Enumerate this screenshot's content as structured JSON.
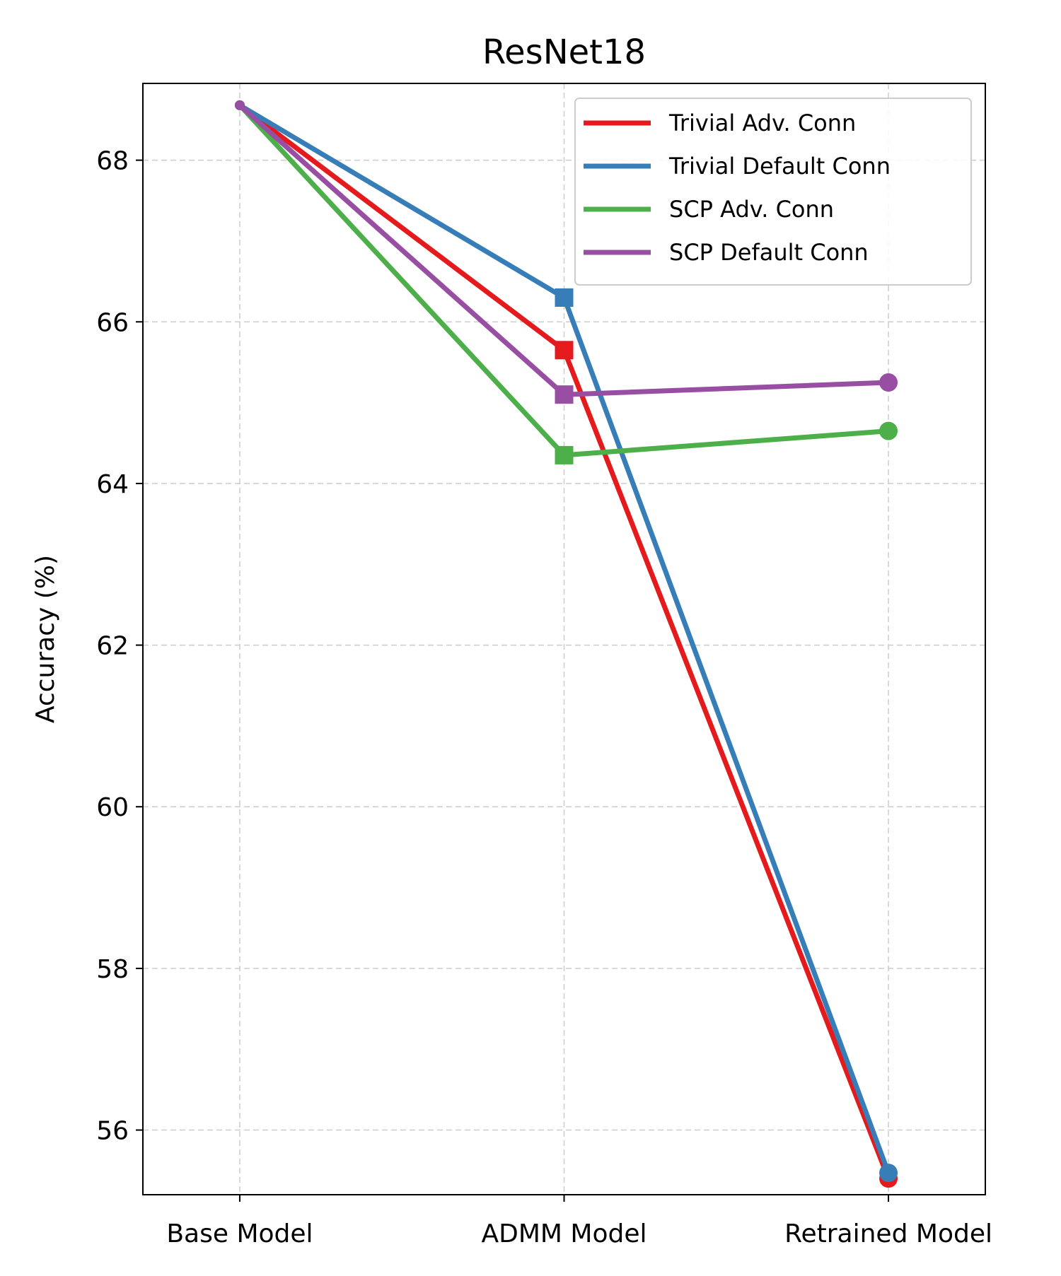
{
  "chart_data": {
    "type": "line",
    "title": "ResNet18",
    "xlabel": "",
    "ylabel": "Accuracy (%)",
    "categories": [
      "Base Model",
      "ADMM Model",
      "Retrained Model"
    ],
    "ylim": [
      55.2,
      68.95
    ],
    "yticks": [
      56,
      58,
      60,
      62,
      64,
      66,
      68
    ],
    "grid": true,
    "legend_position": "top-right",
    "series": [
      {
        "name": "Trivial Adv. Conn",
        "color": "#e41a1c",
        "values": [
          68.68,
          65.65,
          55.4
        ],
        "markers": [
          "small-circle",
          "square",
          "circle"
        ]
      },
      {
        "name": "Trivial Default Conn",
        "color": "#377eb8",
        "values": [
          68.68,
          66.3,
          55.47
        ],
        "markers": [
          "small-circle",
          "square",
          "circle"
        ]
      },
      {
        "name": "SCP Adv. Conn",
        "color": "#4daf4a",
        "values": [
          68.68,
          64.35,
          64.65
        ],
        "markers": [
          "small-circle",
          "square",
          "circle"
        ]
      },
      {
        "name": "SCP Default Conn",
        "color": "#984ea3",
        "values": [
          68.68,
          65.1,
          65.25
        ],
        "markers": [
          "small-circle",
          "square",
          "circle"
        ]
      }
    ]
  }
}
